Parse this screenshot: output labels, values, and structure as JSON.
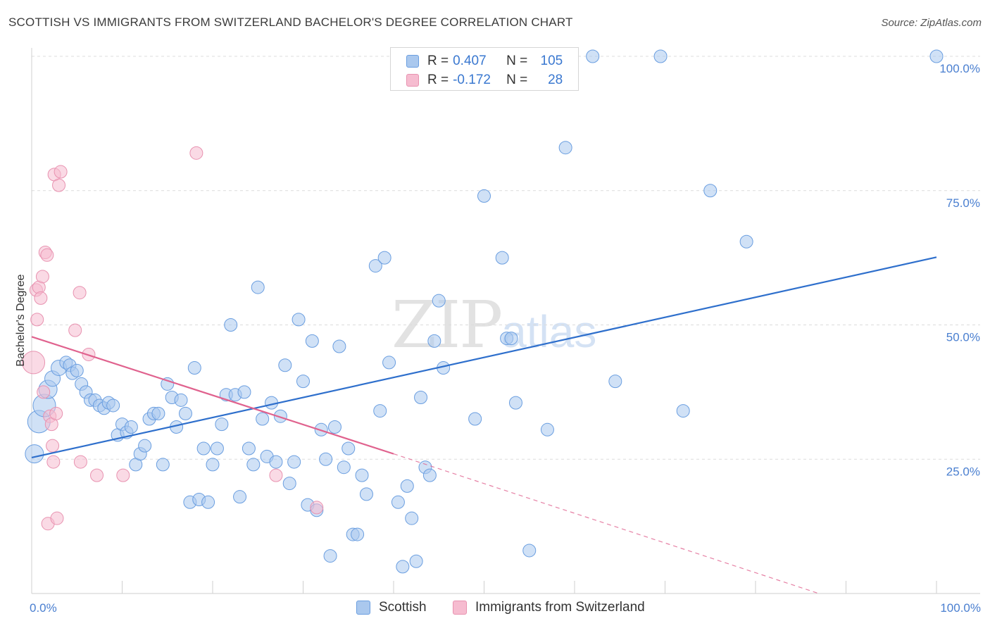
{
  "title": "SCOTTISH VS IMMIGRANTS FROM SWITZERLAND BACHELOR'S DEGREE CORRELATION CHART",
  "source": "Source: ZipAtlas.com",
  "watermark": {
    "zip": "ZIP",
    "atlas": "atlas"
  },
  "colors": {
    "blue_fill": "#aac8ee",
    "blue_stroke": "#6a9ee0",
    "blue_line": "#2e6fcc",
    "pink_fill": "#f6bcd0",
    "pink_stroke": "#e892b0",
    "pink_line": "#e0628e",
    "grid": "#dcdcdc",
    "tick_text": "#4a7fd0"
  },
  "legend": {
    "rows": [
      {
        "r_label": "R =",
        "r_value": "0.407",
        "n_label": "N =",
        "n_value": "105",
        "series": "blue"
      },
      {
        "r_label": "R =",
        "r_value": "-0.172",
        "n_label": "N =",
        "n_value": "28",
        "series": "pink"
      }
    ]
  },
  "bottom_legend": [
    {
      "label": "Scottish",
      "series": "blue"
    },
    {
      "label": "Immigrants from Switzerland",
      "series": "pink"
    }
  ],
  "chart_data": {
    "type": "scatter",
    "title": "SCOTTISH VS IMMIGRANTS FROM SWITZERLAND BACHELOR'S DEGREE CORRELATION CHART",
    "xlabel": "",
    "ylabel": "Bachelor's Degree",
    "xlim": [
      0,
      100
    ],
    "ylim": [
      0,
      100
    ],
    "x_tick_labels": [
      {
        "value": 0,
        "label": "0.0%"
      },
      {
        "value": 100,
        "label": "100.0%"
      }
    ],
    "y_tick_labels": [
      {
        "value": 25,
        "label": "25.0%"
      },
      {
        "value": 50,
        "label": "50.0%"
      },
      {
        "value": 75,
        "label": "75.0%"
      },
      {
        "value": 100,
        "label": "100.0%"
      }
    ],
    "grid": true,
    "series": [
      {
        "name": "Scottish",
        "color": "blue",
        "trend": {
          "x": [
            0,
            100
          ],
          "y": [
            25.3,
            62.6
          ]
        },
        "points": [
          [
            0.3,
            26,
            4
          ],
          [
            0.8,
            32,
            5
          ],
          [
            1.4,
            35,
            5
          ],
          [
            1.8,
            38,
            4
          ],
          [
            2.3,
            40,
            3
          ],
          [
            3,
            42,
            3
          ],
          [
            3.8,
            43,
            2
          ],
          [
            4.2,
            42.5,
            2
          ],
          [
            4.5,
            41,
            2
          ],
          [
            5,
            41.5,
            2
          ],
          [
            5.5,
            39,
            2
          ],
          [
            6,
            37.5,
            2
          ],
          [
            6.5,
            36,
            2
          ],
          [
            7,
            36,
            2
          ],
          [
            7.5,
            35,
            2
          ],
          [
            8,
            34.5,
            2
          ],
          [
            8.5,
            35.5,
            2
          ],
          [
            9,
            35,
            2
          ],
          [
            9.5,
            29.5,
            2
          ],
          [
            10,
            31.5,
            2
          ],
          [
            10.5,
            30,
            2
          ],
          [
            11,
            31,
            2
          ],
          [
            11.5,
            24,
            2
          ],
          [
            12,
            26,
            2
          ],
          [
            12.5,
            27.5,
            2
          ],
          [
            13,
            32.5,
            2
          ],
          [
            13.5,
            33.5,
            2
          ],
          [
            14,
            33.5,
            2
          ],
          [
            14.5,
            24,
            2
          ],
          [
            15,
            39,
            2
          ],
          [
            15.5,
            36.5,
            2
          ],
          [
            16,
            31,
            2
          ],
          [
            16.5,
            36,
            2
          ],
          [
            17,
            33.5,
            2
          ],
          [
            17.5,
            17,
            2
          ],
          [
            18,
            42,
            2
          ],
          [
            18.5,
            17.5,
            2
          ],
          [
            19,
            27,
            2
          ],
          [
            19.5,
            17,
            2
          ],
          [
            20,
            24,
            2
          ],
          [
            20.5,
            27,
            2
          ],
          [
            21,
            31.5,
            2
          ],
          [
            21.5,
            37,
            2
          ],
          [
            22,
            50,
            2
          ],
          [
            22.5,
            37,
            2
          ],
          [
            23,
            18,
            2
          ],
          [
            23.5,
            37.5,
            2
          ],
          [
            24,
            27,
            2
          ],
          [
            24.5,
            24,
            2
          ],
          [
            25,
            57,
            2
          ],
          [
            25.5,
            32.5,
            2
          ],
          [
            26,
            25.5,
            2
          ],
          [
            26.5,
            35.5,
            2
          ],
          [
            27,
            24.5,
            2
          ],
          [
            27.5,
            33,
            2
          ],
          [
            28,
            42.5,
            2
          ],
          [
            28.5,
            20.5,
            2
          ],
          [
            29,
            24.5,
            2
          ],
          [
            29.5,
            51,
            2
          ],
          [
            30,
            39.5,
            2
          ],
          [
            30.5,
            16.5,
            2
          ],
          [
            31,
            47,
            2
          ],
          [
            31.5,
            15.5,
            2
          ],
          [
            32,
            30.5,
            2
          ],
          [
            32.5,
            25,
            2
          ],
          [
            33,
            7,
            2
          ],
          [
            33.5,
            31,
            2
          ],
          [
            34,
            46,
            2
          ],
          [
            34.5,
            23.5,
            2
          ],
          [
            35,
            27,
            2
          ],
          [
            35.5,
            11,
            2
          ],
          [
            36,
            11,
            2
          ],
          [
            36.5,
            22,
            2
          ],
          [
            37,
            18.5,
            2
          ],
          [
            38,
            61,
            2
          ],
          [
            38.5,
            34,
            2
          ],
          [
            39,
            62.5,
            2
          ],
          [
            39.5,
            43,
            2
          ],
          [
            40.5,
            17,
            2
          ],
          [
            41,
            5,
            2
          ],
          [
            41.5,
            20,
            2
          ],
          [
            42,
            14,
            2
          ],
          [
            42.5,
            6,
            2
          ],
          [
            43,
            36.5,
            2
          ],
          [
            43.5,
            23.5,
            2
          ],
          [
            44,
            22,
            2
          ],
          [
            44.5,
            47,
            2
          ],
          [
            45,
            54.5,
            2
          ],
          [
            45.5,
            42,
            2
          ],
          [
            49,
            32.5,
            2
          ],
          [
            50,
            74,
            2
          ],
          [
            52,
            62.5,
            2
          ],
          [
            52.5,
            47.5,
            2
          ],
          [
            53,
            47.5,
            2
          ],
          [
            53.5,
            35.5,
            2
          ],
          [
            55,
            8,
            2
          ],
          [
            57,
            30.5,
            2
          ],
          [
            59,
            83,
            2
          ],
          [
            62,
            100,
            2
          ],
          [
            64.5,
            39.5,
            2
          ],
          [
            69.5,
            100,
            2
          ],
          [
            72,
            34,
            2
          ],
          [
            75,
            75,
            2
          ],
          [
            79,
            65.5,
            2
          ],
          [
            100,
            100,
            2
          ]
        ]
      },
      {
        "name": "Immigrants from Switzerland",
        "color": "pink",
        "trend": {
          "x": [
            0,
            40
          ],
          "y": [
            47.8,
            26.0
          ]
        },
        "trend_dashed": {
          "x": [
            40,
            87
          ],
          "y": [
            26.0,
            0
          ]
        },
        "points": [
          [
            0.2,
            43,
            5
          ],
          [
            0.5,
            56.5,
            2
          ],
          [
            0.6,
            51,
            2
          ],
          [
            0.8,
            57,
            2
          ],
          [
            1,
            55,
            2
          ],
          [
            1.2,
            59,
            2
          ],
          [
            1.3,
            37.5,
            2
          ],
          [
            1.5,
            63.5,
            2
          ],
          [
            1.7,
            63,
            2
          ],
          [
            1.8,
            13,
            2
          ],
          [
            2,
            33,
            2
          ],
          [
            2.2,
            31.5,
            2
          ],
          [
            2.3,
            27.5,
            2
          ],
          [
            2.4,
            24.5,
            2
          ],
          [
            2.5,
            78,
            2
          ],
          [
            2.7,
            33.5,
            2
          ],
          [
            2.8,
            14,
            2
          ],
          [
            3,
            76,
            2
          ],
          [
            3.2,
            78.5,
            2
          ],
          [
            4.8,
            49,
            2
          ],
          [
            5.3,
            56,
            2
          ],
          [
            5.4,
            24.5,
            2
          ],
          [
            6.3,
            44.5,
            2
          ],
          [
            7.2,
            22,
            2
          ],
          [
            10.1,
            22,
            2
          ],
          [
            18.2,
            82,
            2
          ],
          [
            27,
            22,
            2
          ],
          [
            31.5,
            16,
            2
          ]
        ]
      }
    ]
  }
}
